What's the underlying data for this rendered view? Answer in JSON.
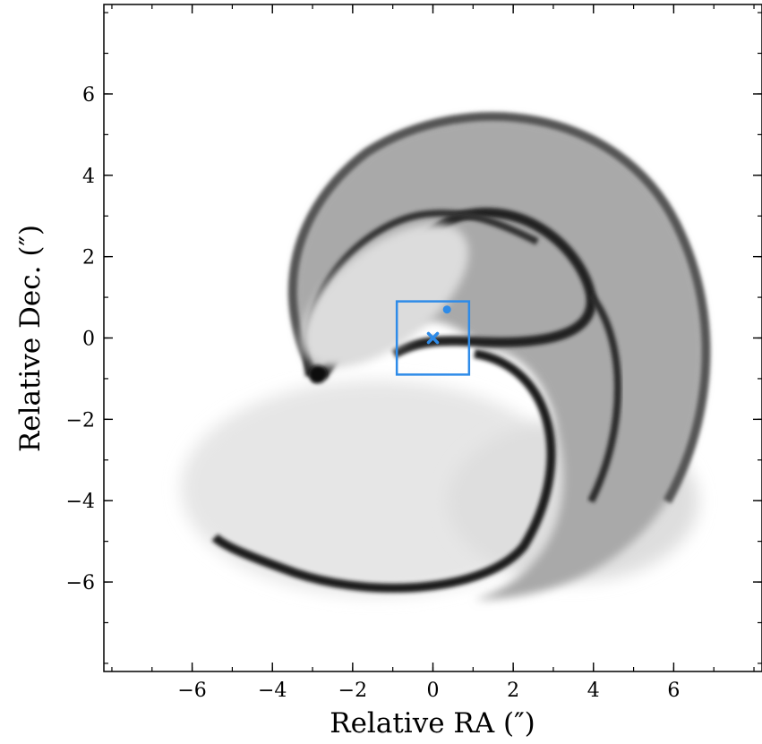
{
  "chart_data": {
    "type": "image",
    "xlabel": "Relative RA (″)",
    "ylabel": "Relative Dec. (″)",
    "xlim": [
      -8.2,
      8.2
    ],
    "ylim": [
      -8.2,
      8.2
    ],
    "xticks": [
      -6,
      -4,
      -2,
      0,
      2,
      4,
      6
    ],
    "yticks": [
      -6,
      -4,
      -2,
      0,
      2,
      4,
      6
    ],
    "xtick_labels": [
      "−6",
      "−4",
      "−2",
      "0",
      "2",
      "4",
      "6"
    ],
    "ytick_labels": [
      "−6",
      "−4",
      "−2",
      "0",
      "2",
      "4",
      "6"
    ],
    "minor_tick_step": 1,
    "grid": false,
    "colormap": "greys",
    "overlay": {
      "box": {
        "x": [
          -0.9,
          0.9
        ],
        "y": [
          -0.9,
          0.9
        ]
      },
      "cross_marker": {
        "x": 0.0,
        "y": 0.0
      },
      "dot_marker": {
        "x": 0.35,
        "y": 0.7
      },
      "color": "#2e8be8"
    }
  }
}
